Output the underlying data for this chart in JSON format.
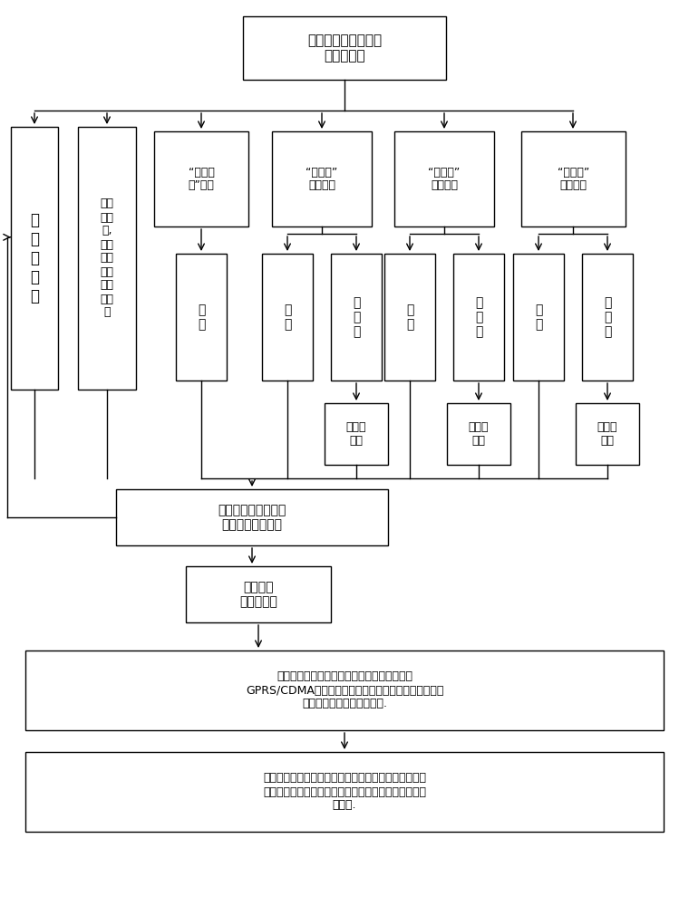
{
  "title_text": "充电桩与车辆处于连\n接充电状态",
  "swipe_text": "刷\n原\n充\n电\n卡",
  "unplug_text": "拔掉\n连接\n线,\n断开\n充电\n桩与\n车辆\n的连\n接",
  "mode1_text": "“充满为\n止”模式",
  "mode2_text": "“按时间”\n充电模式",
  "mode3_text": "“按电量”\n充电模式",
  "mode4_text": "“按费用”\n充电模式",
  "full_text": "充\n满",
  "notfull_text": "未\n充\n满",
  "time_text": "到设定\n时间",
  "elec_text": "到设定\n电量",
  "fee_text": "到设定\n费用",
  "relay_text": "充电桩继电器自动断\n开电流，停止充电",
  "stop_text": "停止充电\n解锁充电桩",
  "info_text": "充电桩根据电表计时、计量、计费信息，通过\nGPRS/CDMA信号发送信息到集中式远程费控平台，从该\n充电卡账户扣除相应的金额.",
  "final_text": "集中式远程费控平台通过供电公司网上缴费接口将该充\n电卡账户中扣除的金额缴到该充电桩对应的电表业务号\n账户中."
}
